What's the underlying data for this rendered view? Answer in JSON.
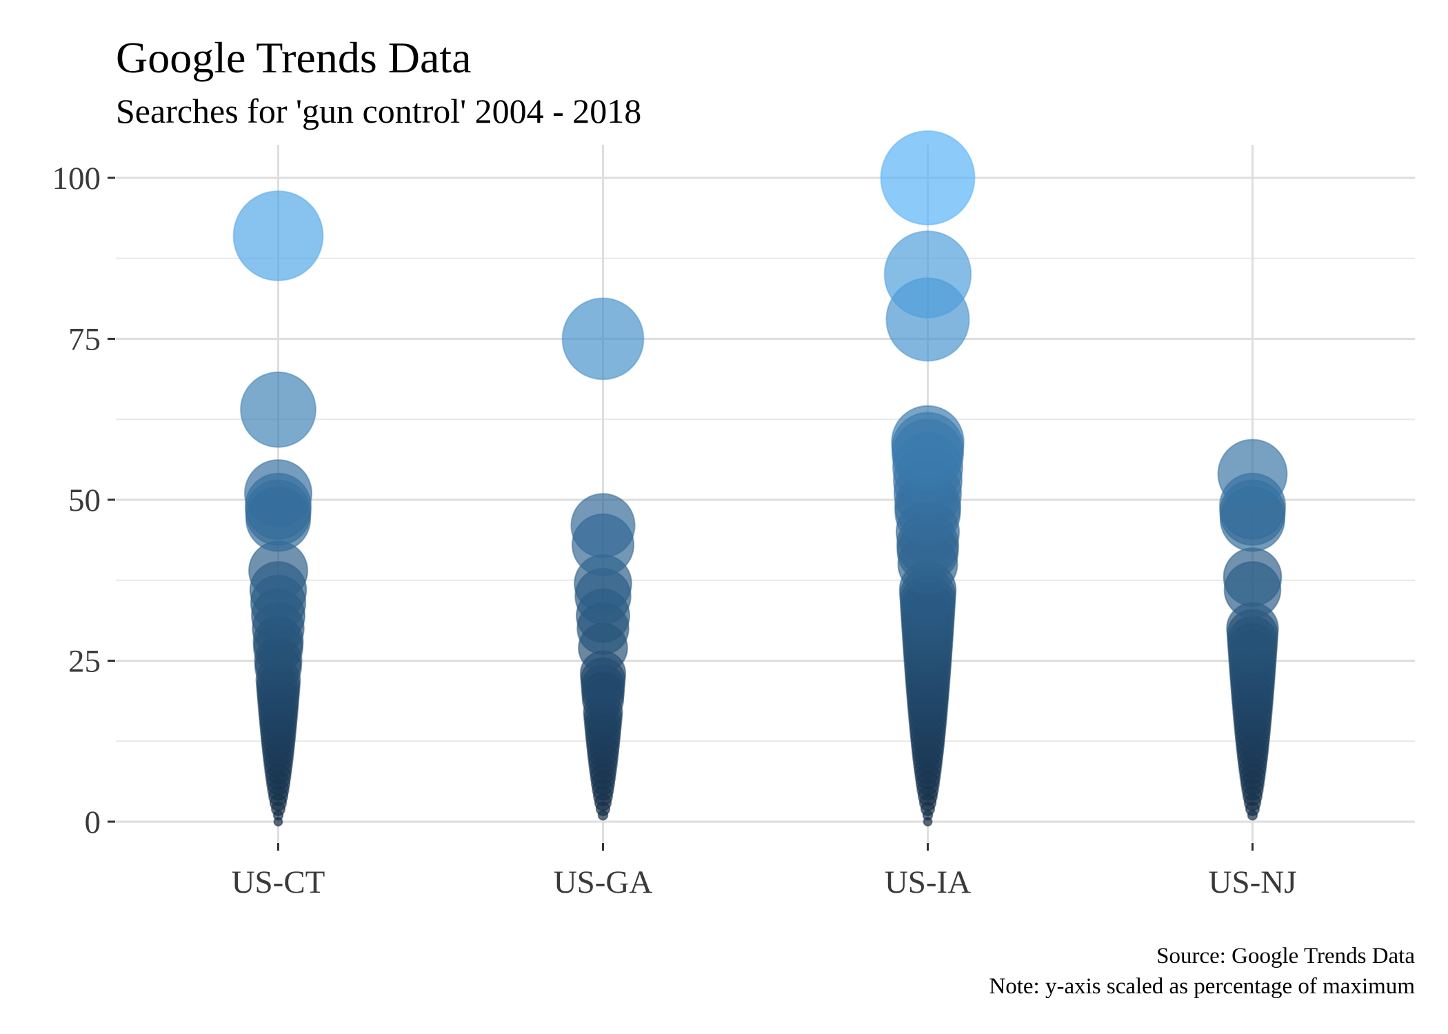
{
  "colors": {
    "low": "#132b43",
    "high": "#56b1f7",
    "grid": "#dedede",
    "background": "#ffffff"
  },
  "chart_data": {
    "type": "scatter",
    "title": "Google Trends Data",
    "subtitle": "Searches for 'gun control' 2004 - 2018",
    "caption_lines": [
      "Source: Google Trends Data",
      "Note: y-axis scaled as percentage of maximum"
    ],
    "xlabel": "",
    "ylabel": "",
    "categories": [
      "US-CT",
      "US-GA",
      "US-IA",
      "US-NJ"
    ],
    "y_ticks": [
      0,
      25,
      50,
      75,
      100
    ],
    "y_tick_labels": [
      "0",
      "25",
      "50",
      "75",
      "100"
    ],
    "ylim": [
      -5,
      105
    ],
    "size_and_color_encode": "y",
    "grid": true,
    "legend": "none",
    "series": [
      {
        "category": "US-CT",
        "values": [
          91,
          64,
          51,
          49,
          48,
          47,
          39,
          36,
          34,
          32,
          30,
          28,
          27,
          25,
          24,
          22,
          21,
          20,
          19,
          18,
          17,
          16,
          15,
          14,
          13,
          12,
          11,
          10,
          9,
          8,
          7,
          6,
          5,
          4,
          3,
          2,
          1,
          0
        ]
      },
      {
        "category": "US-GA",
        "values": [
          75,
          46,
          43,
          37,
          35,
          32,
          30,
          27,
          23,
          22,
          21,
          20,
          19,
          17,
          16,
          15,
          14,
          13,
          12,
          11,
          10,
          9,
          8,
          7,
          6,
          5,
          4,
          3,
          2,
          1
        ]
      },
      {
        "category": "US-IA",
        "values": [
          100,
          85,
          78,
          59,
          58,
          57,
          55,
          53,
          51,
          49,
          48,
          45,
          43,
          42,
          40,
          36,
          35,
          34,
          33,
          32,
          31,
          30,
          29,
          28,
          27,
          26,
          25,
          24,
          23,
          22,
          21,
          20,
          19,
          18,
          17,
          16,
          15,
          14,
          13,
          12,
          11,
          10,
          9,
          8,
          7,
          6,
          5,
          4,
          3,
          2,
          1,
          0
        ]
      },
      {
        "category": "US-NJ",
        "values": [
          54,
          49,
          48,
          47,
          38,
          36,
          30,
          29,
          28,
          27,
          26,
          25,
          24,
          23,
          22,
          21,
          20,
          19,
          18,
          17,
          16,
          15,
          14,
          13,
          12,
          11,
          10,
          9,
          8,
          7,
          6,
          5,
          4,
          3,
          2,
          1
        ]
      }
    ]
  }
}
